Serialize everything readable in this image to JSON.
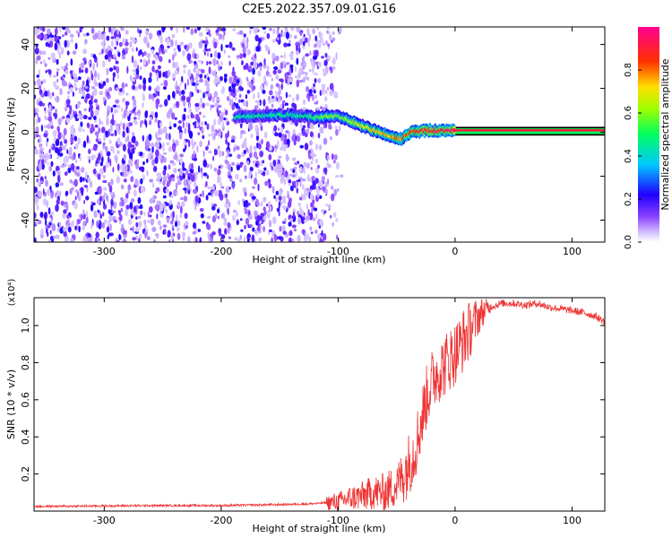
{
  "title": "C2E5.2022.357.09.01.G16",
  "chart_data": [
    {
      "type": "heatmap",
      "title": "",
      "xlabel": "Height of straight line (km)",
      "ylabel": "Frequency (Hz)",
      "xlim": [
        -360,
        128
      ],
      "ylim": [
        -50,
        48
      ],
      "xticks": [
        -300,
        -200,
        -100,
        0,
        100
      ],
      "yticks": [
        -40,
        -20,
        0,
        20,
        40
      ],
      "grid": false,
      "colorbar": {
        "label": "Normalized spectral amplitude",
        "range": [
          0,
          1
        ],
        "ticks": [
          0.0,
          0.2,
          0.4,
          0.6,
          0.8
        ],
        "colormap": [
          "#ffffff",
          "#c0a0ff",
          "#6a00ff",
          "#0000ff",
          "#00ffff",
          "#00ff00",
          "#ffff00",
          "#ff0000",
          "#ff0080"
        ]
      },
      "signal_track": {
        "height_km": [
          -188,
          -170,
          -150,
          -130,
          -115,
          -105,
          -95,
          -85,
          -75,
          -65,
          -55,
          -45,
          -38,
          -30,
          -20,
          -12,
          -5,
          0,
          128
        ],
        "frequency_hz": [
          7,
          7.5,
          8,
          7.5,
          6.5,
          7.5,
          6.5,
          4,
          2,
          0,
          -2,
          -3,
          0,
          0.5,
          1,
          0.5,
          1,
          1,
          1
        ],
        "amplitude": [
          0.42,
          0.45,
          0.45,
          0.45,
          0.55,
          0.6,
          0.6,
          0.65,
          0.7,
          0.75,
          0.75,
          0.8,
          0.85,
          0.9,
          0.9,
          0.9,
          0.95,
          0.95,
          0.95
        ]
      },
      "noise_region_km": [
        -360,
        -95
      ]
    },
    {
      "type": "line",
      "title": "",
      "xlabel": "Height of straight line (km)",
      "ylabel": "SNR (10 * v/v)",
      "y_multiplier": "(x10⁴)",
      "xlim": [
        -360,
        128
      ],
      "ylim": [
        0,
        1.15
      ],
      "xticks": [
        -300,
        -200,
        -100,
        0,
        100
      ],
      "yticks": [
        0.2,
        0.4,
        0.6,
        0.8,
        1.0
      ],
      "grid": false,
      "series": [
        {
          "color": "#ee3333",
          "x": [
            -360,
            -300,
            -250,
            -200,
            -150,
            -120,
            -100,
            -90,
            -80,
            -70,
            -60,
            -50,
            -45,
            -40,
            -35,
            -30,
            -25,
            -20,
            -15,
            -10,
            -5,
            0,
            5,
            10,
            15,
            20,
            25,
            30,
            40,
            50,
            60,
            70,
            80,
            90,
            100,
            110,
            120,
            128
          ],
          "y": [
            0.025,
            0.028,
            0.03,
            0.03,
            0.035,
            0.04,
            0.05,
            0.07,
            0.08,
            0.1,
            0.1,
            0.14,
            0.2,
            0.25,
            0.32,
            0.45,
            0.6,
            0.7,
            0.75,
            0.78,
            0.82,
            0.85,
            0.9,
            0.95,
            1.0,
            1.05,
            1.08,
            1.1,
            1.12,
            1.12,
            1.11,
            1.12,
            1.1,
            1.09,
            1.08,
            1.07,
            1.05,
            1.02
          ]
        }
      ]
    }
  ]
}
